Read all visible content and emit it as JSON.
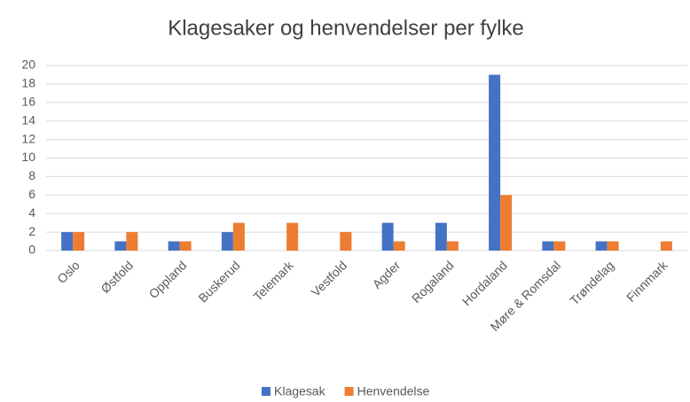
{
  "chart_data": {
    "type": "bar",
    "title": "Klagesaker og henvendelser per fylke",
    "categories": [
      "Oslo",
      "Østfold",
      "Oppland",
      "Buskerud",
      "Telemark",
      "Vestfold",
      "Agder",
      "Rogaland",
      "Hordaland",
      "Møre & Romsdal",
      "Trøndelag",
      "Finnmark"
    ],
    "series": [
      {
        "name": "Klagesak",
        "color": "#4472c4",
        "values": [
          2,
          1,
          1,
          2,
          0,
          0,
          3,
          3,
          19,
          1,
          1,
          0
        ]
      },
      {
        "name": "Henvendelse",
        "color": "#ed7d31",
        "values": [
          2,
          2,
          1,
          3,
          3,
          2,
          1,
          1,
          6,
          1,
          1,
          1
        ]
      }
    ],
    "ylim": [
      0,
      20
    ],
    "yticks": [
      0,
      2,
      4,
      6,
      8,
      10,
      12,
      14,
      16,
      18,
      20
    ],
    "grid": true,
    "legend": "bottom"
  }
}
